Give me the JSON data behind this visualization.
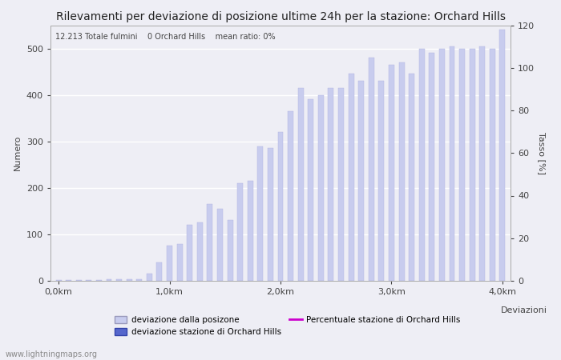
{
  "title": "Rilevamenti per deviazione di posizione ultime 24h per la stazione: Orchard Hills",
  "subtitle": "12.213 Totale fulmini    0 Orchard Hills    mean ratio: 0%",
  "xlabel": "Deviazioni",
  "ylabel_left": "Numero",
  "ylabel_right": "Tasso [%]",
  "watermark": "www.lightningmaps.org",
  "ylim_left": [
    0,
    550
  ],
  "ylim_right": [
    0,
    120
  ],
  "xtick_labels": [
    "0,0km",
    "1,0km",
    "2,0km",
    "3,0km",
    "4,0km"
  ],
  "bar_values": [
    2,
    1,
    2,
    2,
    2,
    3,
    3,
    3,
    4,
    15,
    40,
    75,
    80,
    120,
    125,
    165,
    155,
    130,
    210,
    215,
    290,
    285,
    320,
    365,
    415,
    390,
    400,
    415,
    415,
    445,
    430,
    480,
    430,
    465,
    470,
    445,
    500,
    490,
    500,
    505,
    500,
    500,
    505,
    500,
    540
  ],
  "bar_color": "#c8ccee",
  "bar_edge_color": "#b0b4e0",
  "bar_color_station": "#5566cc",
  "line_color": "#cc00cc",
  "background_color": "#eeeef5",
  "grid_color": "#ffffff",
  "title_fontsize": 10,
  "axis_fontsize": 8,
  "tick_fontsize": 8,
  "legend_items": [
    {
      "label": "deviazione dalla posizone",
      "color": "#c8ccee",
      "edge": "#9999bb",
      "type": "bar"
    },
    {
      "label": "deviazione stazione di Orchard Hills",
      "color": "#5566cc",
      "edge": "#3344aa",
      "type": "bar"
    },
    {
      "label": "Percentuale stazione di Orchard Hills",
      "color": "#cc00cc",
      "type": "line"
    }
  ]
}
